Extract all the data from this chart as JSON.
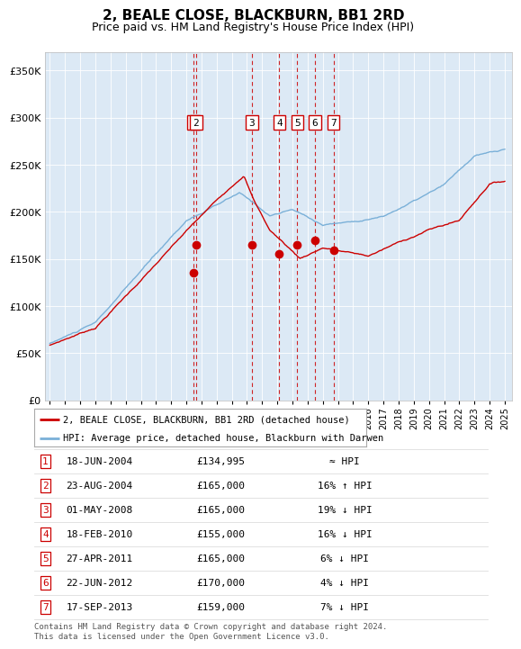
{
  "title": "2, BEALE CLOSE, BLACKBURN, BB1 2RD",
  "subtitle": "Price paid vs. HM Land Registry's House Price Index (HPI)",
  "title_fontsize": 11,
  "subtitle_fontsize": 9,
  "bg_color": "#dce9f5",
  "hpi_line_color": "#7ab0d8",
  "price_line_color": "#cc0000",
  "dot_color": "#cc0000",
  "vline_color": "#cc0000",
  "ylim": [
    0,
    370000
  ],
  "yticks": [
    0,
    50000,
    100000,
    150000,
    200000,
    250000,
    300000,
    350000
  ],
  "ytick_labels": [
    "£0",
    "£50K",
    "£100K",
    "£150K",
    "£200K",
    "£250K",
    "£300K",
    "£350K"
  ],
  "legend1_label": "2, BEALE CLOSE, BLACKBURN, BB1 2RD (detached house)",
  "legend2_label": "HPI: Average price, detached house, Blackburn with Darwen",
  "footer_text": "Contains HM Land Registry data © Crown copyright and database right 2024.\nThis data is licensed under the Open Government Licence v3.0.",
  "sale_dates_x": [
    2004.472,
    2004.642,
    2008.33,
    2010.13,
    2011.32,
    2012.47,
    2013.71
  ],
  "sale_prices_y": [
    134995,
    165000,
    165000,
    155000,
    165000,
    170000,
    159000
  ],
  "sale_labels": [
    "1",
    "2",
    "3",
    "4",
    "5",
    "6",
    "7"
  ],
  "table_rows": [
    [
      "1",
      "18-JUN-2004",
      "£134,995",
      "≈ HPI"
    ],
    [
      "2",
      "23-AUG-2004",
      "£165,000",
      "16% ↑ HPI"
    ],
    [
      "3",
      "01-MAY-2008",
      "£165,000",
      "19% ↓ HPI"
    ],
    [
      "4",
      "18-FEB-2010",
      "£155,000",
      "16% ↓ HPI"
    ],
    [
      "5",
      "27-APR-2011",
      "£165,000",
      "6% ↓ HPI"
    ],
    [
      "6",
      "22-JUN-2012",
      "£170,000",
      "4% ↓ HPI"
    ],
    [
      "7",
      "17-SEP-2013",
      "£159,000",
      "7% ↓ HPI"
    ]
  ]
}
